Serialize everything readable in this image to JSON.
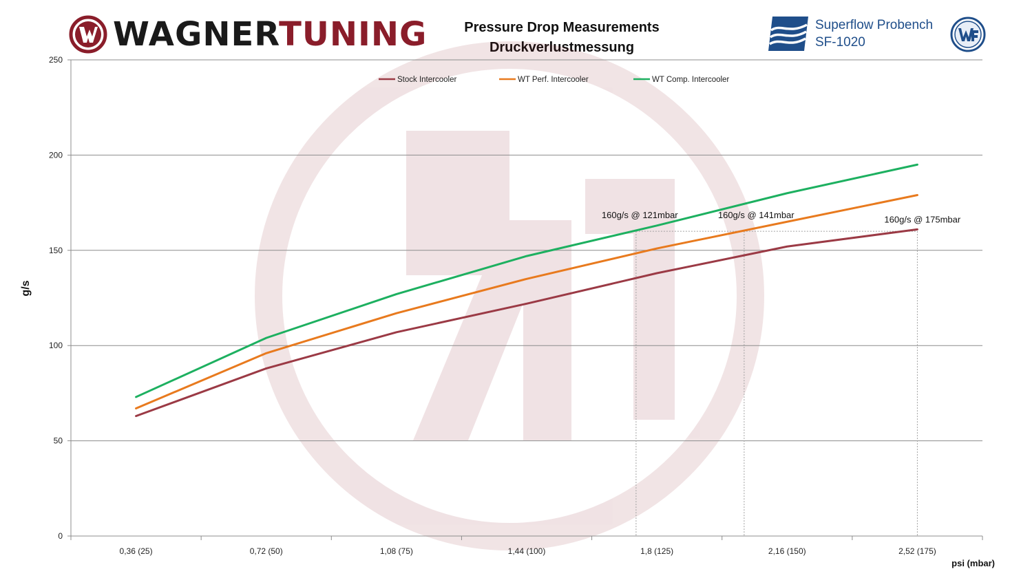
{
  "header": {
    "brand_part1": "WAGNER",
    "brand_part2": "TUNING",
    "title": "Pressure Drop Measurements",
    "subtitle": "Druckverlustmessung",
    "bench_line1": "Superflow Probench",
    "bench_line2": "SF-1020"
  },
  "colors": {
    "stock": "#9b3a45",
    "perf": "#e87a1e",
    "comp": "#1db060",
    "brand_red": "#8a1d2a",
    "superflow_blue": "#1f4e8a"
  },
  "icons": [
    "wt-logo-icon",
    "superflow-logo-icon",
    "wf-badge-icon"
  ],
  "chart_data": {
    "type": "line",
    "title": "Pressure Drop Measurements",
    "subtitle": "Druckverlustmessung",
    "xlabel": "psi (mbar)",
    "ylabel": "g/s",
    "ylim": [
      0,
      250
    ],
    "yticks": [
      0,
      50,
      100,
      150,
      200,
      250
    ],
    "grid": "horizontal",
    "legend_position": "top",
    "categories": [
      "0,36 (25)",
      "0,72 (50)",
      "1,08 (75)",
      "1,44 (100)",
      "1,8 (125)",
      "2,16 (150)",
      "2,52 (175)"
    ],
    "series": [
      {
        "name": "Stock Intercooler",
        "values": [
          63,
          88,
          107,
          122,
          138,
          152,
          161
        ]
      },
      {
        "name": "WT Perf. Intercooler",
        "values": [
          67,
          96,
          117,
          135,
          151,
          165,
          179
        ]
      },
      {
        "name": "WT Comp. Intercooler",
        "values": [
          73,
          104,
          127,
          147,
          163,
          180,
          195
        ]
      }
    ],
    "annotations": [
      {
        "text": "160g/s @ 121mbar",
        "series": 2,
        "x_index": 3.84,
        "y": 160
      },
      {
        "text": "160g/s @ 141mbar",
        "series": 1,
        "x_index": 4.67,
        "y": 160
      },
      {
        "text": "160g/s @ 175mbar",
        "series": 0,
        "x_index": 6,
        "y": 160
      }
    ]
  }
}
